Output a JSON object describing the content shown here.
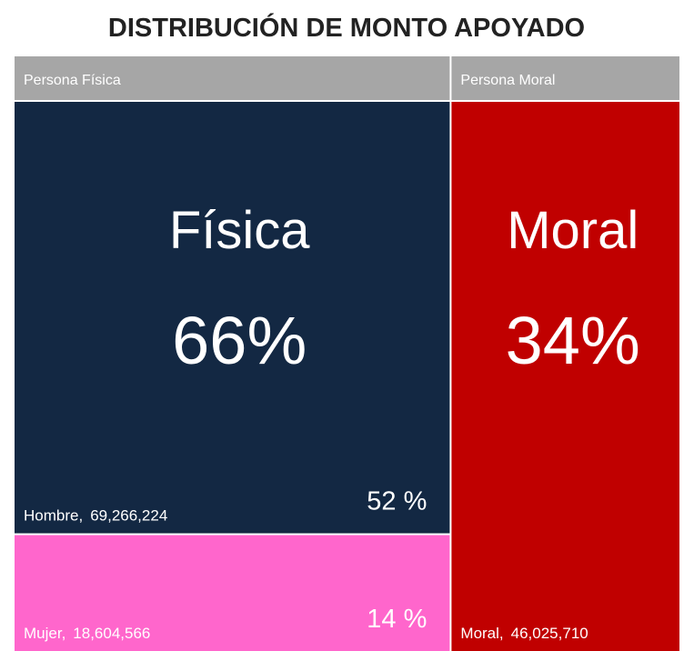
{
  "chart_data": {
    "type": "treemap",
    "title": "DISTRIBUCIÓN DE MONTO APOYADO",
    "header_color": "#a6a6a6",
    "groups": [
      {
        "name": "Persona Física",
        "label": "Física",
        "percent": 66,
        "percent_label": "66%",
        "leaves": [
          {
            "name": "Hombre,",
            "value": 69266224,
            "value_label": "69,266,224",
            "percent": 52,
            "percent_label": "52 %",
            "color": "#132843"
          },
          {
            "name": "Mujer,",
            "value": 18604566,
            "value_label": "18,604,566",
            "percent": 14,
            "percent_label": "14 %",
            "color": "#ff66cc"
          }
        ]
      },
      {
        "name": "Persona Moral",
        "label": "Moral",
        "percent": 34,
        "percent_label": "34%",
        "leaves": [
          {
            "name": "Moral,",
            "value": 46025710,
            "value_label": "46,025,710",
            "color": "#c00000"
          }
        ]
      }
    ]
  }
}
